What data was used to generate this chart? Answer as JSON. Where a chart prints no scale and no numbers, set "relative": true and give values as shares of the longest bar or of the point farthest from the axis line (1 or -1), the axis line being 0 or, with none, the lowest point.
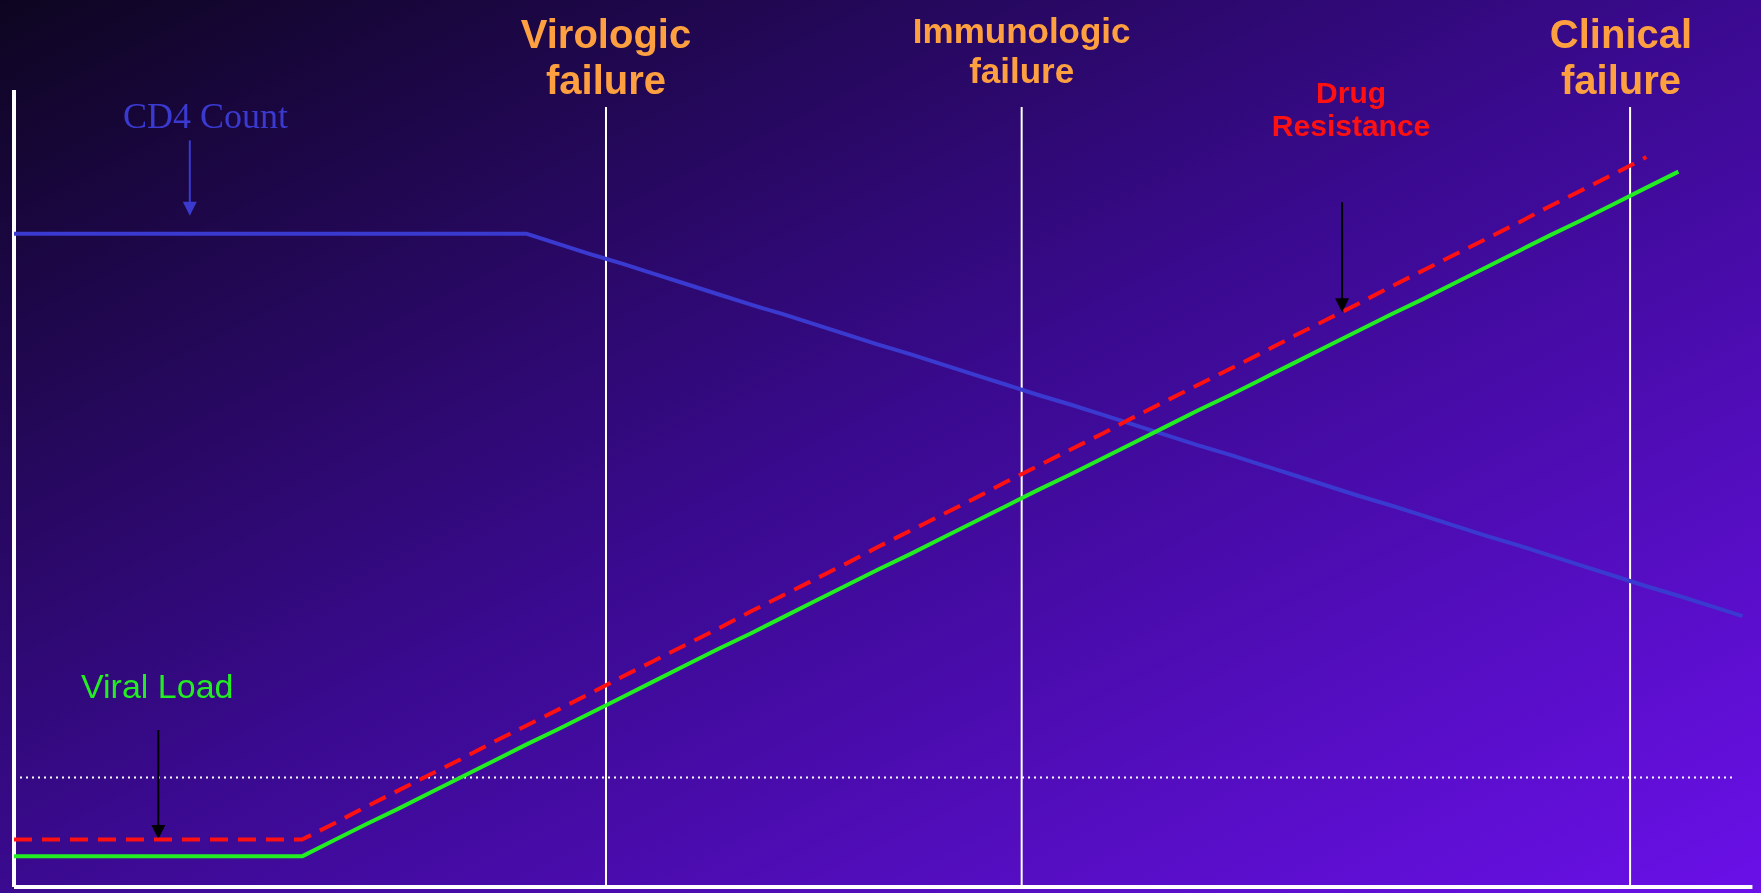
{
  "chart_data": {
    "type": "line",
    "relative": true,
    "marker": "none",
    "categories": [
      null,
      null,
      null,
      null,
      null,
      null,
      null,
      null,
      null,
      null,
      null,
      null,
      null,
      null,
      null,
      null,
      null,
      null,
      null,
      null,
      null,
      null,
      null,
      null,
      null,
      null,
      null,
      null,
      null,
      null,
      null,
      null,
      null,
      null,
      null,
      null,
      null,
      null,
      null,
      null,
      null,
      null,
      null,
      null,
      null,
      null,
      null,
      null,
      null,
      null,
      null,
      null,
      null,
      null,
      null
    ],
    "series": [
      {
        "name": "CD4 Count",
        "color": "#3a3ad0",
        "line_style": "solid",
        "values": [
          0.895,
          0.895,
          0.895,
          0.895,
          0.895,
          0.895,
          0.895,
          0.895,
          0.895,
          0.895,
          0.895,
          0.895,
          0.895,
          0.895,
          0.895,
          0.895,
          0.895,
          0.881,
          0.867,
          0.854,
          0.84,
          0.826,
          0.812,
          0.798,
          0.785,
          0.771,
          0.757,
          0.743,
          0.73,
          0.716,
          0.702,
          0.688,
          0.674,
          0.661,
          0.647,
          0.633,
          0.619,
          0.605,
          0.592,
          0.578,
          0.564,
          0.55,
          0.536,
          0.523,
          0.509,
          0.495,
          0.481,
          0.468,
          0.454,
          0.44,
          0.426,
          0.412,
          0.399,
          0.385,
          0.371
        ]
      },
      {
        "name": "Viral Load",
        "color": "#22ee22",
        "line_style": "solid",
        "values": [
          0.042,
          0.042,
          0.042,
          0.042,
          0.042,
          0.042,
          0.042,
          0.042,
          0.042,
          0.042,
          0.064,
          0.086,
          0.107,
          0.129,
          0.151,
          0.173,
          0.195,
          0.216,
          0.238,
          0.26,
          0.282,
          0.304,
          0.326,
          0.347,
          0.369,
          0.391,
          0.413,
          0.435,
          0.456,
          0.478,
          0.5,
          0.522,
          0.544,
          0.565,
          0.587,
          0.609,
          0.631,
          0.653,
          0.674,
          0.696,
          0.718,
          0.74,
          0.762,
          0.784,
          0.805,
          0.827,
          0.849,
          0.871,
          0.893,
          0.914,
          0.936,
          0.958,
          0.98,
          null,
          null
        ]
      },
      {
        "name": "Drug Resistance",
        "color": "#ff1111",
        "line_style": "dashed",
        "values": [
          0.065,
          0.065,
          0.065,
          0.065,
          0.065,
          0.065,
          0.065,
          0.065,
          0.065,
          0.065,
          0.087,
          0.11,
          0.132,
          0.154,
          0.176,
          0.199,
          0.221,
          0.243,
          0.265,
          0.288,
          0.31,
          0.332,
          0.354,
          0.377,
          0.399,
          0.421,
          0.443,
          0.466,
          0.488,
          0.51,
          0.532,
          0.555,
          0.577,
          0.599,
          0.621,
          0.644,
          0.666,
          0.688,
          0.71,
          0.732,
          0.755,
          0.777,
          0.799,
          0.822,
          0.844,
          0.866,
          0.888,
          0.91,
          0.933,
          0.955,
          0.977,
          1.0,
          null,
          null,
          null
        ]
      }
    ],
    "ref_lines": [
      {
        "axis": "x",
        "label": "Virologic failure",
        "color": "#ffffff",
        "line_style": "solid"
      },
      {
        "axis": "x",
        "label": "Immunologic failure",
        "color": "#ffffff",
        "line_style": "solid"
      },
      {
        "axis": "x",
        "label": "Clinical failure",
        "color": "#ffffff",
        "line_style": "solid"
      },
      {
        "axis": "y",
        "value": 0.15,
        "color": "#ffffff",
        "line_style": "dotted"
      }
    ]
  }
}
